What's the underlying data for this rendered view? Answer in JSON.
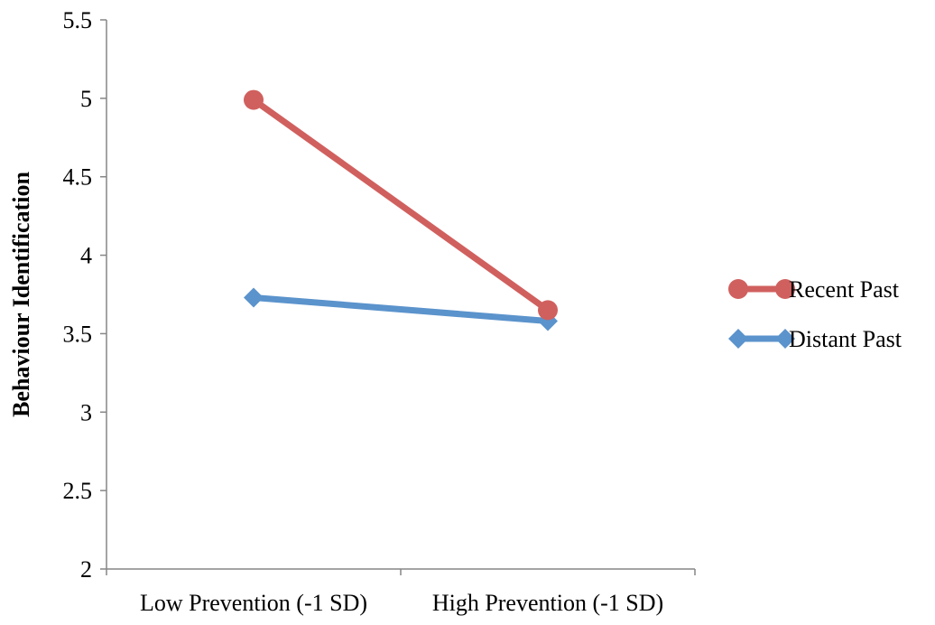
{
  "chart_data": {
    "type": "line",
    "categories": [
      "Low Prevention (-1 SD)",
      "High Prevention (-1 SD)"
    ],
    "ylabel": "Behaviour Identification",
    "xlabel": "",
    "title": "",
    "ylim": [
      2,
      5.5
    ],
    "yticks": [
      "2",
      "2.5",
      "3",
      "3.5",
      "4",
      "4.5",
      "5",
      "5.5"
    ],
    "grid": false,
    "legend_position": "right",
    "series": [
      {
        "name": "Recent Past",
        "values": [
          4.99,
          3.65
        ],
        "color": "#d0605e",
        "marker": "circle"
      },
      {
        "name": "Distant Past",
        "values": [
          3.73,
          3.58
        ],
        "color": "#5b93cc",
        "marker": "diamond"
      }
    ]
  }
}
